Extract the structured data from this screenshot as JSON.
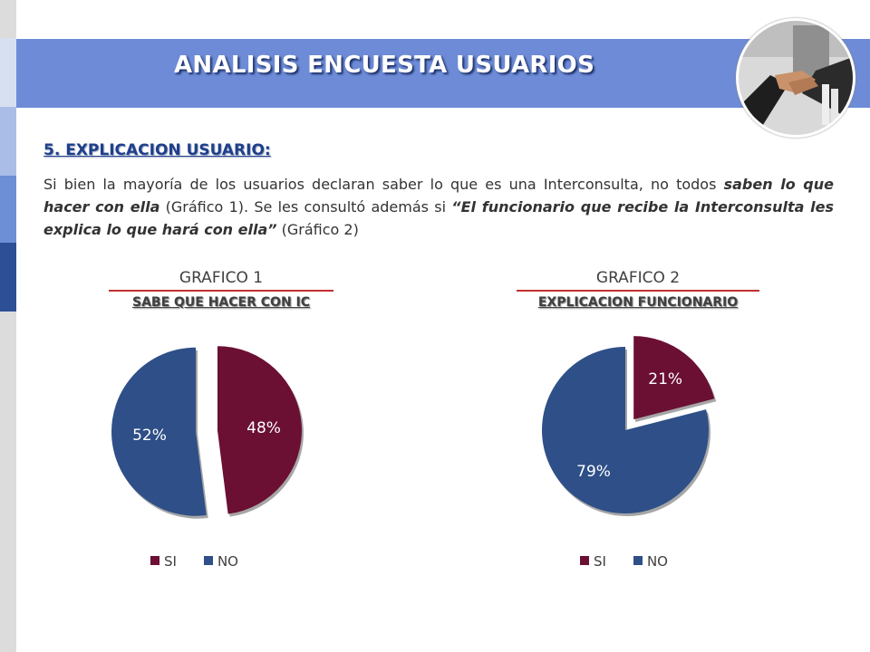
{
  "header": {
    "title": "ANALISIS ENCUESTA USUARIOS",
    "photo_icon": "handshake-photo"
  },
  "section": {
    "heading": "5. EXPLICACION USUARIO:",
    "paragraph": {
      "p1": "Si bien la mayoría de los usuarios declaran saber lo que es una Interconsulta, no todos ",
      "e1": "saben lo que hacer con ella",
      "p2": " (Gráfico 1). Se les consultó además si ",
      "e2": "“El funcionario que recibe la Interconsulta les explica lo que hará con ella”",
      "p3": " (Gráfico 2)"
    }
  },
  "colors": {
    "si": "#6b0f33",
    "no": "#2e4f87",
    "banner": "#6d8bd6"
  },
  "chart_data": [
    {
      "type": "pie",
      "title": "GRAFICO 1",
      "subtitle": "SABE QUE HACER CON IC",
      "categories": [
        "SI",
        "NO"
      ],
      "values": [
        48,
        52
      ],
      "labels": [
        "48%",
        "52%"
      ],
      "legend": "bottom"
    },
    {
      "type": "pie",
      "title": "GRAFICO 2",
      "subtitle": "EXPLICACION FUNCIONARIO",
      "categories": [
        "SI",
        "NO"
      ],
      "values": [
        21,
        79
      ],
      "labels": [
        "21%",
        "79%"
      ],
      "legend": "bottom"
    }
  ]
}
